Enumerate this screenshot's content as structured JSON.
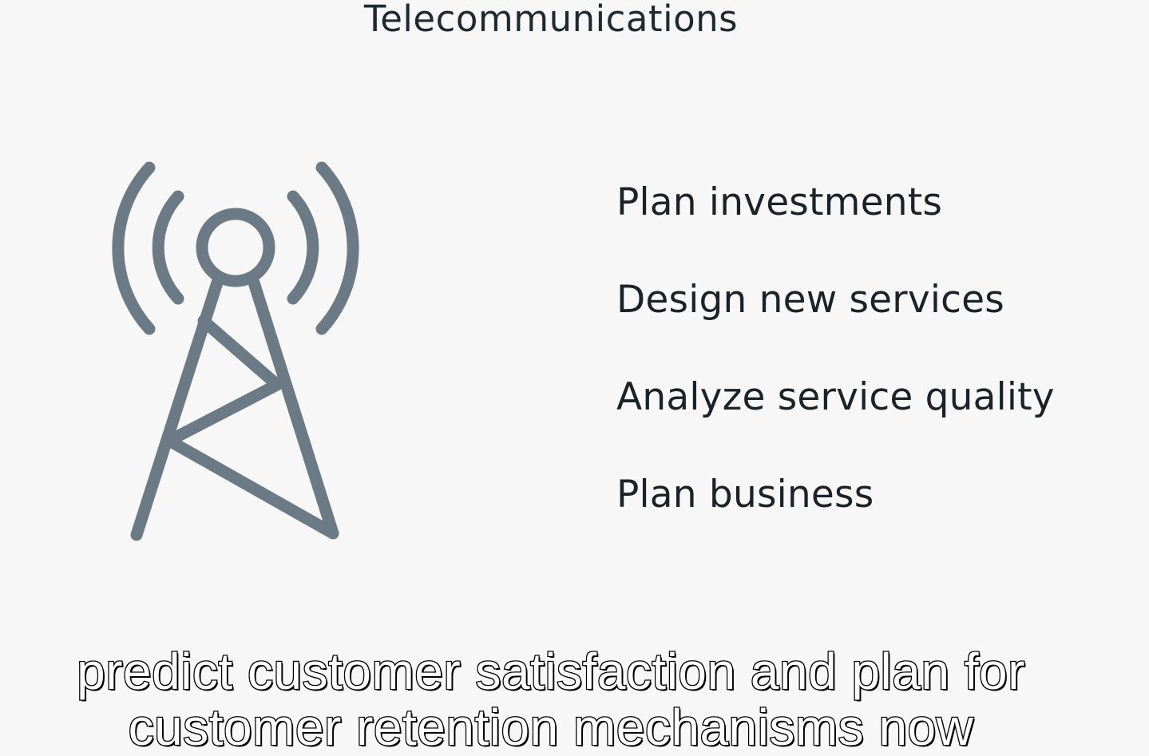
{
  "slide": {
    "title": "Telecommunications",
    "icon": "cell-tower-icon",
    "icon_color": "#6c7a86",
    "items": [
      "Plan investments",
      "Design new services",
      "Analyze service quality",
      "Plan business"
    ]
  },
  "caption": {
    "line1": "predict customer satisfaction and plan for",
    "line2": "customer retention mechanisms now"
  }
}
